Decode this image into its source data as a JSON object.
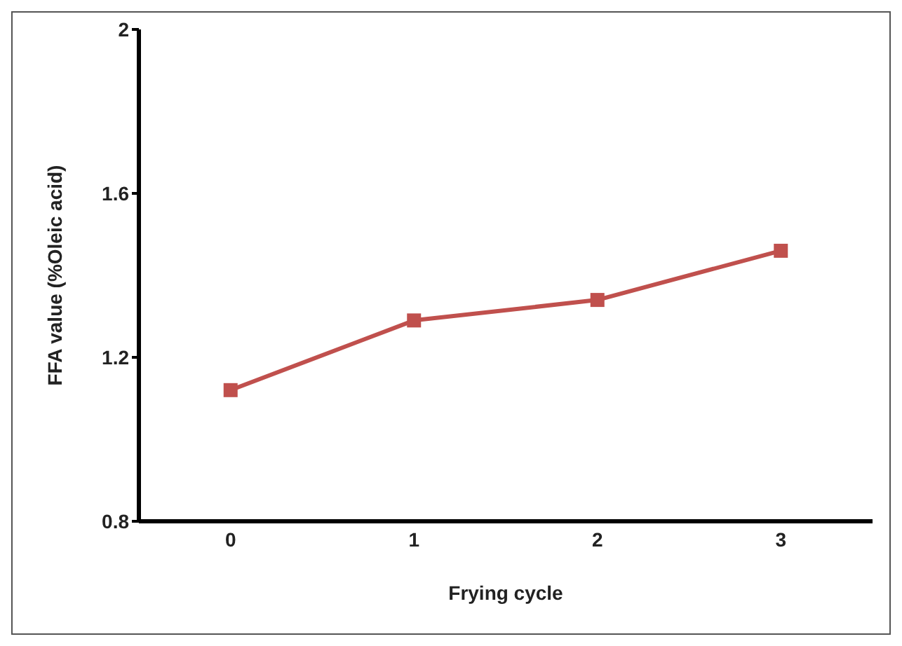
{
  "chart_data": {
    "type": "line",
    "xlabel": "Frying cycle",
    "ylabel": "FFA value (%Oleic acid)",
    "categories": [
      "0",
      "1",
      "2",
      "3"
    ],
    "series": [
      {
        "color": "#c0504d",
        "values": [
          1.12,
          1.29,
          1.34,
          1.46
        ]
      }
    ],
    "ylim": [
      0.8,
      2
    ],
    "yticks": [
      0.8,
      1.2,
      1.6,
      2
    ],
    "grid": false,
    "legend": false,
    "marker": "square",
    "line_style": "solid"
  }
}
